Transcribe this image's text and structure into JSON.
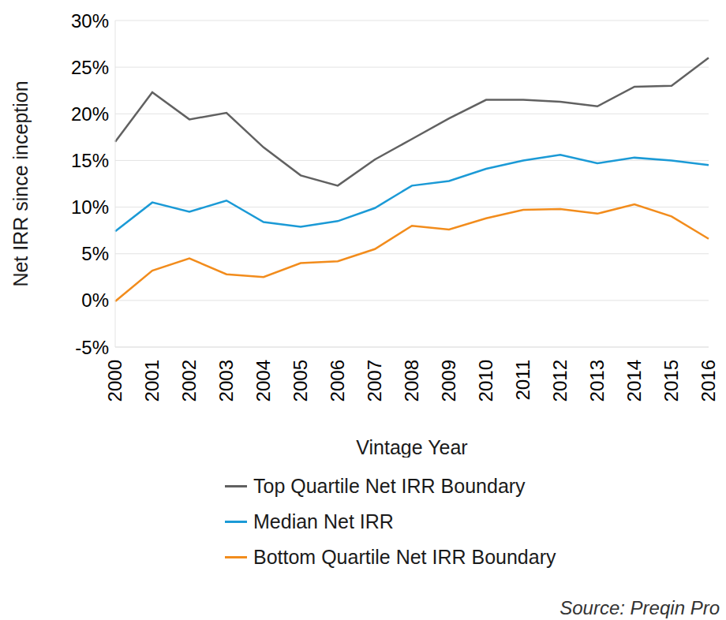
{
  "chart_data": {
    "type": "line",
    "x_label": "Vintage Year",
    "y_label": "Net IRR since inception",
    "source": "Source: Preqin Pro",
    "categories": [
      "2000",
      "2001",
      "2002",
      "2003",
      "2004",
      "2005",
      "2006",
      "2007",
      "2008",
      "2009",
      "2010",
      "2011",
      "2012",
      "2013",
      "2014",
      "2015",
      "2016"
    ],
    "series": [
      {
        "name": "Top Quartile Net IRR Boundary",
        "color": "#616161",
        "values": [
          17.0,
          22.3,
          19.4,
          20.1,
          16.4,
          13.4,
          12.3,
          15.1,
          17.3,
          19.5,
          21.5,
          21.5,
          21.3,
          20.8,
          22.9,
          23.0,
          26.0
        ]
      },
      {
        "name": "Median Net IRR",
        "color": "#1b9ad6",
        "values": [
          7.4,
          10.5,
          9.5,
          10.7,
          8.4,
          7.9,
          8.5,
          9.9,
          12.3,
          12.8,
          14.1,
          15.0,
          15.6,
          14.7,
          15.3,
          15.0,
          14.5
        ]
      },
      {
        "name": "Bottom Quartile Net IRR Boundary",
        "color": "#f28c1c",
        "values": [
          -0.1,
          3.2,
          4.5,
          2.8,
          2.5,
          4.0,
          4.2,
          5.5,
          8.0,
          7.6,
          8.8,
          9.7,
          9.8,
          9.3,
          10.3,
          9.0,
          6.6
        ]
      }
    ],
    "ylim": [
      -5,
      30
    ],
    "yticks": [
      {
        "value": -5,
        "label": "-5%"
      },
      {
        "value": 0,
        "label": "0%"
      },
      {
        "value": 5,
        "label": "5%"
      },
      {
        "value": 10,
        "label": "10%"
      },
      {
        "value": 15,
        "label": "15%"
      },
      {
        "value": 20,
        "label": "20%"
      },
      {
        "value": 25,
        "label": "25%"
      },
      {
        "value": 30,
        "label": "30%"
      }
    ],
    "grid": true,
    "legend": "bottom"
  }
}
